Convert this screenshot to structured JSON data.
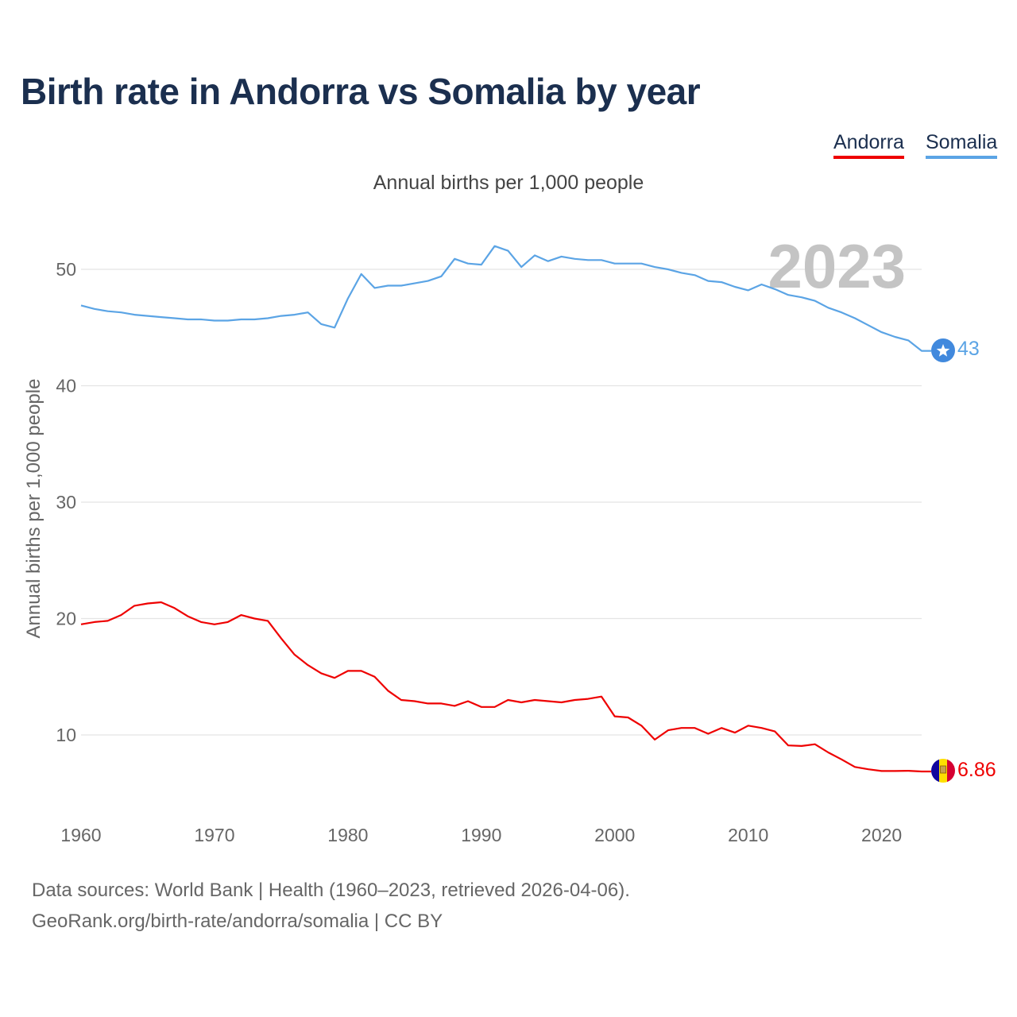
{
  "title": "Birth rate in Andorra vs Somalia by year",
  "subtitle": "Annual births per 1,000 people",
  "legend": [
    {
      "name": "Andorra",
      "color": "#ee0000"
    },
    {
      "name": "Somalia",
      "color": "#5ba4e5"
    }
  ],
  "footer": {
    "line1": "Data sources: World Bank | Health (1960–2023, retrieved 2026-04-06).",
    "line2": "GeoRank.org/birth-rate/andorra/somalia | CC BY"
  },
  "chart_data": {
    "type": "line",
    "title": "Birth rate in Andorra vs Somalia by year",
    "xlabel": "",
    "ylabel": "Annual births per 1,000 people",
    "xlim": [
      1960,
      2023
    ],
    "ylim": [
      4,
      55
    ],
    "yticks": [
      10,
      20,
      30,
      40,
      50
    ],
    "xticks": [
      1960,
      1970,
      1980,
      1990,
      2000,
      2010,
      2020
    ],
    "grid": true,
    "year_watermark": "2023",
    "x": [
      1960,
      1961,
      1962,
      1963,
      1964,
      1965,
      1966,
      1967,
      1968,
      1969,
      1970,
      1971,
      1972,
      1973,
      1974,
      1975,
      1976,
      1977,
      1978,
      1979,
      1980,
      1981,
      1982,
      1983,
      1984,
      1985,
      1986,
      1987,
      1988,
      1989,
      1990,
      1991,
      1992,
      1993,
      1994,
      1995,
      1996,
      1997,
      1998,
      1999,
      2000,
      2001,
      2002,
      2003,
      2004,
      2005,
      2006,
      2007,
      2008,
      2009,
      2010,
      2011,
      2012,
      2013,
      2014,
      2015,
      2016,
      2017,
      2018,
      2019,
      2020,
      2021,
      2022,
      2023
    ],
    "series": [
      {
        "name": "Somalia",
        "color": "#5ba4e5",
        "end_label": "43",
        "values": [
          46.9,
          46.6,
          46.4,
          46.3,
          46.1,
          46.0,
          45.9,
          45.8,
          45.7,
          45.7,
          45.6,
          45.6,
          45.7,
          45.7,
          45.8,
          46.0,
          46.1,
          46.3,
          45.3,
          45.0,
          47.5,
          49.6,
          48.4,
          48.6,
          48.6,
          48.8,
          49.0,
          49.4,
          50.9,
          50.5,
          50.4,
          52.0,
          51.6,
          50.2,
          51.2,
          50.7,
          51.1,
          50.9,
          50.8,
          50.8,
          50.5,
          50.5,
          50.5,
          50.2,
          50.0,
          49.7,
          49.5,
          49.0,
          48.9,
          48.5,
          48.2,
          48.7,
          48.3,
          47.8,
          47.6,
          47.3,
          46.7,
          46.3,
          45.8,
          45.2,
          44.6,
          44.2,
          43.9,
          43.0
        ]
      },
      {
        "name": "Andorra",
        "color": "#ee0000",
        "end_label": "6.86",
        "values": [
          19.5,
          19.7,
          19.8,
          20.3,
          21.1,
          21.3,
          21.4,
          20.9,
          20.2,
          19.7,
          19.5,
          19.7,
          20.3,
          20.0,
          19.8,
          18.3,
          16.9,
          16.0,
          15.3,
          14.9,
          15.5,
          15.5,
          15.0,
          13.8,
          13.0,
          12.9,
          12.7,
          12.7,
          12.5,
          12.9,
          12.4,
          12.4,
          13.0,
          12.8,
          13.0,
          12.9,
          12.8,
          13.0,
          13.1,
          13.3,
          11.6,
          11.5,
          10.8,
          9.6,
          10.4,
          10.6,
          10.6,
          10.1,
          10.6,
          10.2,
          10.8,
          10.6,
          10.3,
          9.1,
          9.05,
          9.2,
          8.5,
          7.9,
          7.25,
          7.05,
          6.9,
          6.9,
          6.92,
          6.86
        ]
      }
    ]
  }
}
